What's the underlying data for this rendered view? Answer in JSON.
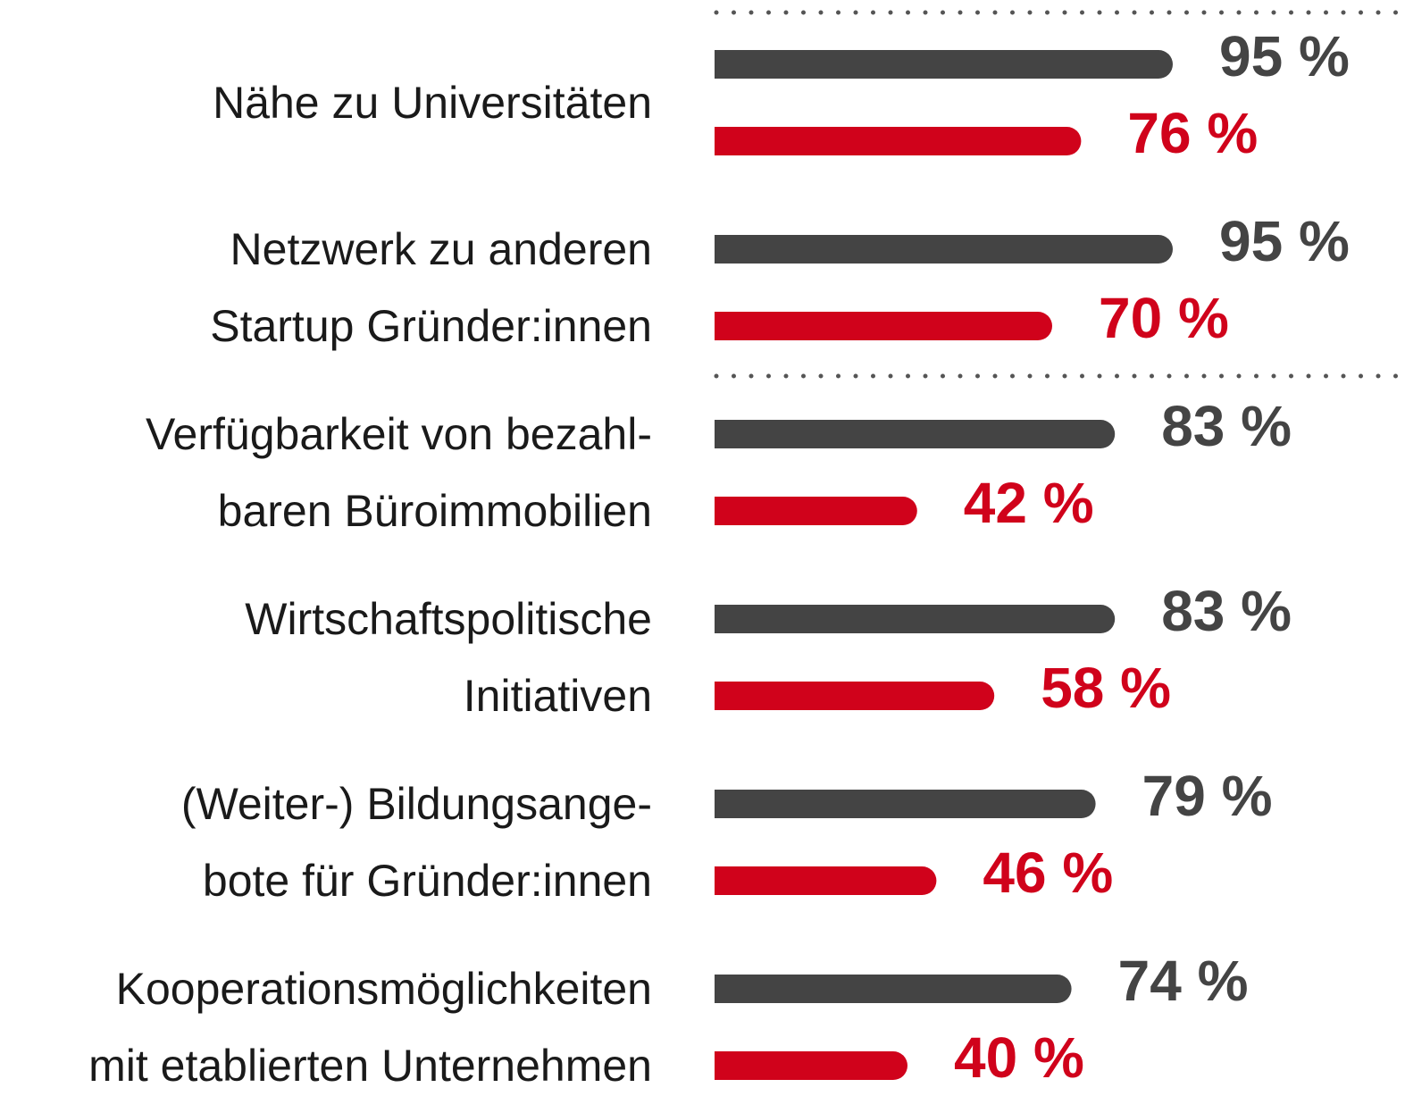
{
  "chart_data": {
    "type": "bar",
    "orientation": "horizontal",
    "categories": [
      [
        "Nähe zu Universitäten"
      ],
      [
        "Netzwerk zu anderen",
        "Startup Gründer:innen"
      ],
      [
        "Verfügbarkeit von bezahl-",
        "baren Büroimmobilien"
      ],
      [
        "Wirtschaftspolitische",
        "Initiativen"
      ],
      [
        "(Weiter-) Bildungsange-",
        "bote für Gründer:innen"
      ],
      [
        "Kooperationsmöglichkeiten",
        "mit etablierten Unternehmen"
      ]
    ],
    "series": [
      {
        "color": "#444444",
        "values": [
          95,
          95,
          83,
          83,
          79,
          74
        ],
        "value_labels": [
          "95 %",
          "95 %",
          "83 %",
          "83 %",
          "79 %",
          "74 %"
        ]
      },
      {
        "color": "#d0021b",
        "values": [
          76,
          70,
          42,
          58,
          46,
          40
        ],
        "value_labels": [
          "76 %",
          "70 %",
          "42 %",
          "58 %",
          "46 %",
          "40 %"
        ]
      }
    ],
    "xlim": [
      0,
      100
    ]
  }
}
